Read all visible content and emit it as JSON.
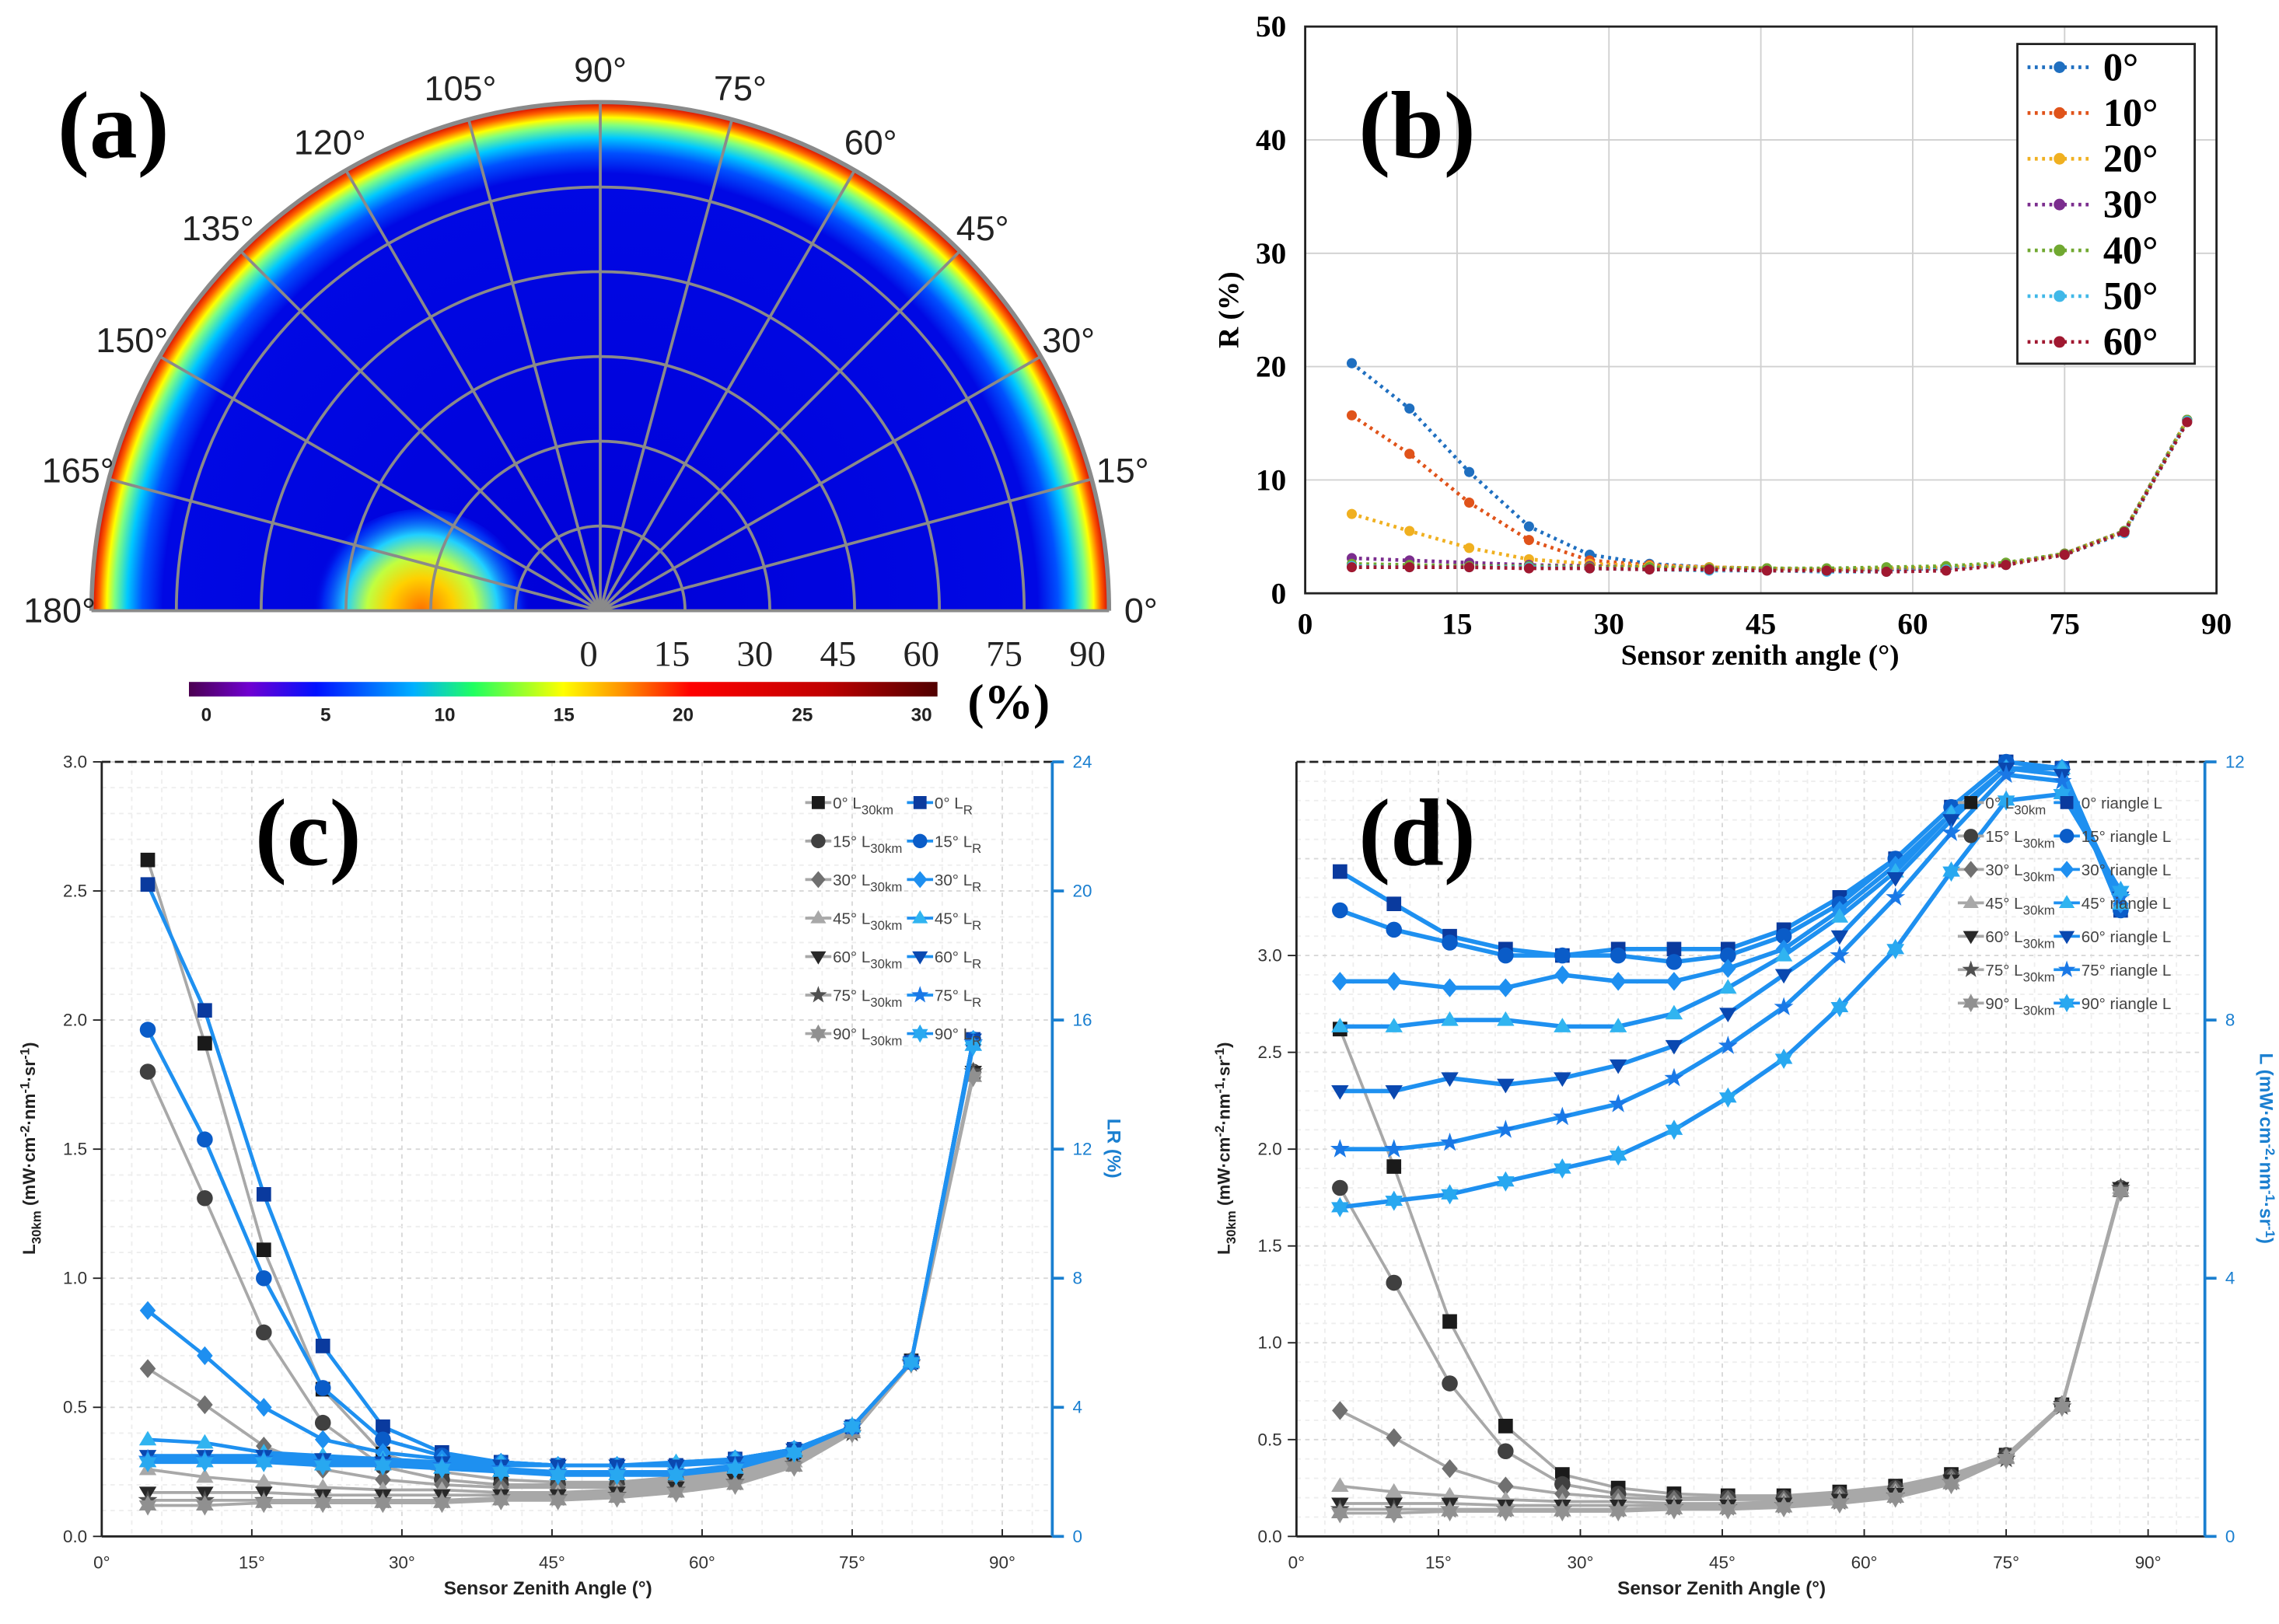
{
  "chart_data": [
    {
      "panel": "a",
      "type": "heatmap",
      "projection": "polar-half",
      "title": "(a)",
      "angular_ticks": [
        "0°",
        "15°",
        "30°",
        "45°",
        "60°",
        "75°",
        "90°",
        "105°",
        "120°",
        "135°",
        "150°",
        "165°",
        "180°"
      ],
      "radial_ticks": [
        "0",
        "15",
        "30",
        "45",
        "60",
        "75",
        "90"
      ],
      "radial_range": [
        0,
        90
      ],
      "background_value": 4,
      "edge_value": 25,
      "hotspot": {
        "azimuth": 180,
        "zenith": 32,
        "value": 17
      },
      "colorbar": {
        "ticks": [
          "0",
          "5",
          "10",
          "15",
          "20",
          "25",
          "30"
        ],
        "range": [
          0,
          30
        ],
        "unit": "(%)"
      }
    },
    {
      "panel": "b",
      "type": "line",
      "title": "(b)",
      "xlabel": "Sensor zenith angle (°)",
      "ylabel": "R (%)",
      "xlim": [
        0,
        90
      ],
      "ylim": [
        0,
        50
      ],
      "xticks": [
        "0",
        "15",
        "30",
        "45",
        "60",
        "75",
        "90"
      ],
      "yticks": [
        "0",
        "10",
        "20",
        "30",
        "40",
        "50"
      ],
      "grid": true,
      "legend": "top-right",
      "x": [
        4.6,
        10.3,
        16.2,
        22.1,
        28.1,
        34,
        39.9,
        45.6,
        51.5,
        57.4,
        63.3,
        69.2,
        75,
        80.9,
        87.1
      ],
      "series": [
        {
          "name": "0°",
          "color": "#1f6fc0",
          "values": [
            20.3,
            16.3,
            10.7,
            5.9,
            3.4,
            2.6,
            2.3,
            2.2,
            2.1,
            2.1,
            2.2,
            2.6,
            3.5,
            5.5,
            15.3
          ]
        },
        {
          "name": "10°",
          "color": "#e0531a",
          "values": [
            15.7,
            12.3,
            8.0,
            4.7,
            2.9,
            2.5,
            2.3,
            2.2,
            2.1,
            2.1,
            2.2,
            2.6,
            3.5,
            5.5,
            15.3
          ]
        },
        {
          "name": "20°",
          "color": "#f0b020",
          "values": [
            7.0,
            5.5,
            4.0,
            3.0,
            2.6,
            2.4,
            2.3,
            2.2,
            2.1,
            2.2,
            2.3,
            2.6,
            3.5,
            5.5,
            15.3
          ]
        },
        {
          "name": "30°",
          "color": "#7b2d8e",
          "values": [
            3.1,
            2.9,
            2.7,
            2.5,
            2.4,
            2.3,
            2.2,
            2.1,
            2.1,
            2.1,
            2.2,
            2.6,
            3.5,
            5.5,
            15.3
          ]
        },
        {
          "name": "40°",
          "color": "#70a830",
          "values": [
            2.6,
            2.5,
            2.4,
            2.4,
            2.3,
            2.3,
            2.2,
            2.2,
            2.2,
            2.3,
            2.4,
            2.7,
            3.5,
            5.5,
            15.3
          ]
        },
        {
          "name": "50°",
          "color": "#40b8e8",
          "values": [
            2.4,
            2.3,
            2.3,
            2.3,
            2.2,
            2.1,
            2.0,
            2.0,
            1.9,
            1.9,
            2.1,
            2.5,
            3.4,
            5.3,
            15.2
          ]
        },
        {
          "name": "60°",
          "color": "#a01830",
          "values": [
            2.3,
            2.3,
            2.3,
            2.2,
            2.2,
            2.1,
            2.1,
            2.0,
            2.0,
            1.9,
            2.0,
            2.5,
            3.4,
            5.4,
            15.1
          ]
        }
      ]
    },
    {
      "panel": "c",
      "type": "line",
      "title": "(c)",
      "xlabel": "Sensor Zenith Angle (°)",
      "ylabel_main": "L",
      "ylabel_sub": "30km",
      "ylabel_rest": " (mW·cm",
      "ylabel_e1": "-2",
      "ylabel_r2": "·nm",
      "ylabel_e2": "-1",
      "ylabel_r3": "·sr",
      "ylabel_e3": "-1",
      "ylabel_end": ")",
      "y2label": "LR (%)",
      "xlim": [
        0,
        95
      ],
      "ylim": [
        0,
        3
      ],
      "y2lim": [
        0,
        24
      ],
      "xticks": [
        "0°",
        "15°",
        "30°",
        "45°",
        "60°",
        "75°",
        "90°"
      ],
      "yticks": [
        "0.0",
        "0.5",
        "1.0",
        "1.5",
        "2.0",
        "2.5",
        "3.0"
      ],
      "y2ticks": [
        "0",
        "4",
        "8",
        "12",
        "16",
        "20",
        "24"
      ],
      "grid": true,
      "legend": "top-right",
      "x": [
        4.6,
        10.3,
        16.2,
        22.1,
        28.1,
        34,
        39.9,
        45.6,
        51.5,
        57.4,
        63.3,
        69.2,
        75,
        80.9,
        87.1
      ],
      "series": [
        {
          "main": "0° L",
          "sub": "30km",
          "axis": "left",
          "marker": "square",
          "color": "#1a1a1a",
          "values": [
            2.62,
            1.91,
            1.11,
            0.57,
            0.32,
            0.25,
            0.22,
            0.21,
            0.21,
            0.23,
            0.26,
            0.32,
            0.42,
            0.68,
            1.79
          ]
        },
        {
          "main": "15° L",
          "sub": "30km",
          "axis": "left",
          "marker": "circle",
          "color": "#404040",
          "values": [
            1.8,
            1.31,
            0.79,
            0.44,
            0.27,
            0.22,
            0.2,
            0.2,
            0.2,
            0.22,
            0.25,
            0.31,
            0.42,
            0.68,
            1.8
          ]
        },
        {
          "main": "30° L",
          "sub": "30km",
          "axis": "left",
          "marker": "diamond",
          "color": "#707070",
          "values": [
            0.65,
            0.51,
            0.35,
            0.26,
            0.22,
            0.2,
            0.19,
            0.19,
            0.19,
            0.21,
            0.24,
            0.3,
            0.41,
            0.68,
            1.8
          ]
        },
        {
          "main": "45° L",
          "sub": "30km",
          "axis": "left",
          "marker": "triangle-up",
          "color": "#a8a8a8",
          "values": [
            0.26,
            0.23,
            0.21,
            0.19,
            0.18,
            0.18,
            0.17,
            0.17,
            0.18,
            0.2,
            0.23,
            0.29,
            0.41,
            0.68,
            1.8
          ]
        },
        {
          "main": "60° L",
          "sub": "30km",
          "axis": "left",
          "marker": "triangle-down",
          "color": "#282828",
          "values": [
            0.17,
            0.17,
            0.17,
            0.16,
            0.16,
            0.16,
            0.16,
            0.16,
            0.17,
            0.19,
            0.22,
            0.29,
            0.4,
            0.67,
            1.8
          ]
        },
        {
          "main": "75° L",
          "sub": "30km",
          "axis": "left",
          "marker": "pentagram",
          "color": "#505050",
          "values": [
            0.14,
            0.14,
            0.14,
            0.14,
            0.14,
            0.14,
            0.15,
            0.15,
            0.16,
            0.18,
            0.21,
            0.28,
            0.4,
            0.67,
            1.8
          ]
        },
        {
          "main": "90° L",
          "sub": "30km",
          "axis": "left",
          "marker": "hexagram",
          "color": "#909090",
          "values": [
            0.12,
            0.12,
            0.13,
            0.13,
            0.13,
            0.13,
            0.14,
            0.14,
            0.15,
            0.17,
            0.2,
            0.27,
            0.4,
            0.67,
            1.78
          ]
        },
        {
          "main": "0° L",
          "sub": "R",
          "axis": "right",
          "marker": "square",
          "color": "#0a3a9e",
          "values": [
            20.2,
            16.3,
            10.6,
            5.9,
            3.4,
            2.6,
            2.3,
            2.2,
            2.2,
            2.2,
            2.4,
            2.7,
            3.4,
            5.4,
            15.4
          ]
        },
        {
          "main": "15° L",
          "sub": "R",
          "axis": "right",
          "marker": "circle",
          "color": "#0a5cc8",
          "values": [
            15.7,
            12.3,
            8.0,
            4.6,
            3.0,
            2.5,
            2.3,
            2.2,
            2.2,
            2.2,
            2.4,
            2.7,
            3.4,
            5.4,
            15.4
          ]
        },
        {
          "main": "30° L",
          "sub": "R",
          "axis": "right",
          "marker": "diamond",
          "color": "#1e8ff0",
          "values": [
            7.0,
            5.6,
            4.0,
            3.0,
            2.6,
            2.4,
            2.3,
            2.2,
            2.2,
            2.2,
            2.4,
            2.7,
            3.4,
            5.4,
            15.4
          ]
        },
        {
          "main": "45° L",
          "sub": "R",
          "axis": "right",
          "marker": "triangle-up",
          "color": "#30b4f0",
          "values": [
            3.0,
            2.9,
            2.6,
            2.5,
            2.4,
            2.3,
            2.3,
            2.2,
            2.2,
            2.3,
            2.4,
            2.7,
            3.4,
            5.4,
            15.4
          ]
        },
        {
          "main": "60° L",
          "sub": "R",
          "axis": "right",
          "marker": "triangle-down",
          "color": "#0a48b0",
          "values": [
            2.5,
            2.5,
            2.5,
            2.4,
            2.3,
            2.3,
            2.2,
            2.2,
            2.2,
            2.2,
            2.3,
            2.7,
            3.4,
            5.4,
            15.4
          ]
        },
        {
          "main": "75° L",
          "sub": "R",
          "axis": "right",
          "marker": "pentagram",
          "color": "#1a78e6",
          "values": [
            2.4,
            2.4,
            2.4,
            2.3,
            2.3,
            2.2,
            2.1,
            2.0,
            2.0,
            2.0,
            2.2,
            2.6,
            3.4,
            5.4,
            15.3
          ]
        },
        {
          "main": "90° L",
          "sub": "R",
          "axis": "right",
          "marker": "hexagram",
          "color": "#28a8f0",
          "values": [
            2.3,
            2.3,
            2.3,
            2.2,
            2.2,
            2.1,
            2.0,
            1.9,
            1.9,
            1.9,
            2.1,
            2.6,
            3.4,
            5.4,
            15.2
          ]
        }
      ]
    },
    {
      "panel": "d",
      "type": "line",
      "title": "(d)",
      "xlabel": "Sensor Zenith Angle (°)",
      "ylabel_main": "L",
      "ylabel_sub": "30km",
      "ylabel_rest": " (mW·cm",
      "ylabel_e1": "-2",
      "ylabel_r2": "·nm",
      "ylabel_e2": "-1",
      "ylabel_r3": "·sr",
      "ylabel_e3": "-1",
      "ylabel_end": ")",
      "y2label_main": "L (mW·cm",
      "y2label_e1": "-2",
      "y2label_r2": "·nm",
      "y2label_e2": "-1",
      "y2label_r3": "·sr",
      "y2label_e3": "-1",
      "y2label_end": ")",
      "xlim": [
        0,
        96
      ],
      "ylim": [
        0,
        4
      ],
      "y2lim": [
        0,
        12
      ],
      "xticks": [
        "0°",
        "15°",
        "30°",
        "45°",
        "60°",
        "75°",
        "90°"
      ],
      "yticks": [
        "0.0",
        "0.5",
        "1.0",
        "1.5",
        "2.0",
        "2.5",
        "3.0"
      ],
      "y2ticks": [
        "0",
        "4",
        "8",
        "12"
      ],
      "grid": true,
      "legend": "top-right",
      "x": [
        4.6,
        10.3,
        16.2,
        22.1,
        28.1,
        34,
        39.9,
        45.6,
        51.5,
        57.4,
        63.3,
        69.2,
        75,
        80.9,
        87.1
      ],
      "series": [
        {
          "main": "0° L",
          "sub": "30km",
          "axis": "left",
          "marker": "square",
          "color": "#1a1a1a",
          "values": [
            2.62,
            1.91,
            1.11,
            0.57,
            0.32,
            0.25,
            0.22,
            0.21,
            0.21,
            0.23,
            0.26,
            0.32,
            0.42,
            0.68,
            1.79
          ]
        },
        {
          "main": "15° L",
          "sub": "30km",
          "axis": "left",
          "marker": "circle",
          "color": "#404040",
          "values": [
            1.8,
            1.31,
            0.79,
            0.44,
            0.27,
            0.22,
            0.2,
            0.2,
            0.2,
            0.22,
            0.25,
            0.31,
            0.42,
            0.68,
            1.8
          ]
        },
        {
          "main": "30° L",
          "sub": "30km",
          "axis": "left",
          "marker": "diamond",
          "color": "#707070",
          "values": [
            0.65,
            0.51,
            0.35,
            0.26,
            0.22,
            0.2,
            0.19,
            0.19,
            0.19,
            0.21,
            0.24,
            0.3,
            0.41,
            0.68,
            1.8
          ]
        },
        {
          "main": "45° L",
          "sub": "30km",
          "axis": "left",
          "marker": "triangle-up",
          "color": "#a8a8a8",
          "values": [
            0.26,
            0.23,
            0.21,
            0.19,
            0.18,
            0.18,
            0.17,
            0.17,
            0.18,
            0.2,
            0.23,
            0.29,
            0.41,
            0.68,
            1.8
          ]
        },
        {
          "main": "60° L",
          "sub": "30km",
          "axis": "left",
          "marker": "triangle-down",
          "color": "#282828",
          "values": [
            0.17,
            0.17,
            0.17,
            0.16,
            0.16,
            0.16,
            0.16,
            0.16,
            0.17,
            0.19,
            0.22,
            0.29,
            0.4,
            0.67,
            1.8
          ]
        },
        {
          "main": "75° L",
          "sub": "30km",
          "axis": "left",
          "marker": "pentagram",
          "color": "#505050",
          "values": [
            0.14,
            0.14,
            0.14,
            0.14,
            0.14,
            0.14,
            0.15,
            0.15,
            0.16,
            0.18,
            0.21,
            0.28,
            0.4,
            0.67,
            1.8
          ]
        },
        {
          "main": "90° L",
          "sub": "30km",
          "axis": "left",
          "marker": "hexagram",
          "color": "#909090",
          "values": [
            0.12,
            0.12,
            0.13,
            0.13,
            0.13,
            0.13,
            0.14,
            0.14,
            0.15,
            0.17,
            0.2,
            0.27,
            0.4,
            0.67,
            1.78
          ]
        },
        {
          "main": "0° riangle L",
          "sub": "",
          "axis": "right",
          "marker": "square",
          "color": "#0a3a9e",
          "values": [
            10.3,
            9.8,
            9.3,
            9.1,
            9.0,
            9.1,
            9.1,
            9.1,
            9.4,
            9.9,
            10.5,
            11.3,
            12.0,
            11.9,
            9.7
          ]
        },
        {
          "main": "15° riangle L",
          "sub": "",
          "axis": "right",
          "marker": "circle",
          "color": "#0a5cc8",
          "values": [
            9.7,
            9.4,
            9.2,
            9.0,
            9.0,
            9.0,
            8.9,
            9.0,
            9.3,
            9.8,
            10.5,
            11.3,
            12.0,
            11.9,
            9.7
          ]
        },
        {
          "main": "30° riangle L",
          "sub": "",
          "axis": "right",
          "marker": "diamond",
          "color": "#1e8ff0",
          "values": [
            8.6,
            8.6,
            8.5,
            8.5,
            8.7,
            8.6,
            8.6,
            8.8,
            9.1,
            9.7,
            10.4,
            11.2,
            11.9,
            11.9,
            9.8
          ]
        },
        {
          "main": "45° riangle L",
          "sub": "",
          "axis": "right",
          "marker": "triangle-up",
          "color": "#30b4f0",
          "values": [
            7.9,
            7.9,
            8.0,
            8.0,
            7.9,
            7.9,
            8.1,
            8.5,
            9.0,
            9.6,
            10.3,
            11.2,
            11.9,
            11.9,
            9.8
          ]
        },
        {
          "main": "60° riangle L",
          "sub": "",
          "axis": "right",
          "marker": "triangle-down",
          "color": "#0a48b0",
          "values": [
            6.9,
            6.9,
            7.1,
            7.0,
            7.1,
            7.3,
            7.6,
            8.1,
            8.7,
            9.3,
            10.2,
            11.1,
            11.9,
            11.8,
            9.9
          ]
        },
        {
          "main": "75° riangle L",
          "sub": "",
          "axis": "right",
          "marker": "pentagram",
          "color": "#1a78e6",
          "values": [
            6.0,
            6.0,
            6.1,
            6.3,
            6.5,
            6.7,
            7.1,
            7.6,
            8.2,
            9.0,
            9.9,
            10.9,
            11.8,
            11.7,
            9.9
          ]
        },
        {
          "main": "90° riangle L",
          "sub": "",
          "axis": "right",
          "marker": "hexagram",
          "color": "#28a8f0",
          "values": [
            5.1,
            5.2,
            5.3,
            5.5,
            5.7,
            5.9,
            6.3,
            6.8,
            7.4,
            8.2,
            9.1,
            10.3,
            11.4,
            11.5,
            10.0
          ]
        }
      ]
    }
  ]
}
